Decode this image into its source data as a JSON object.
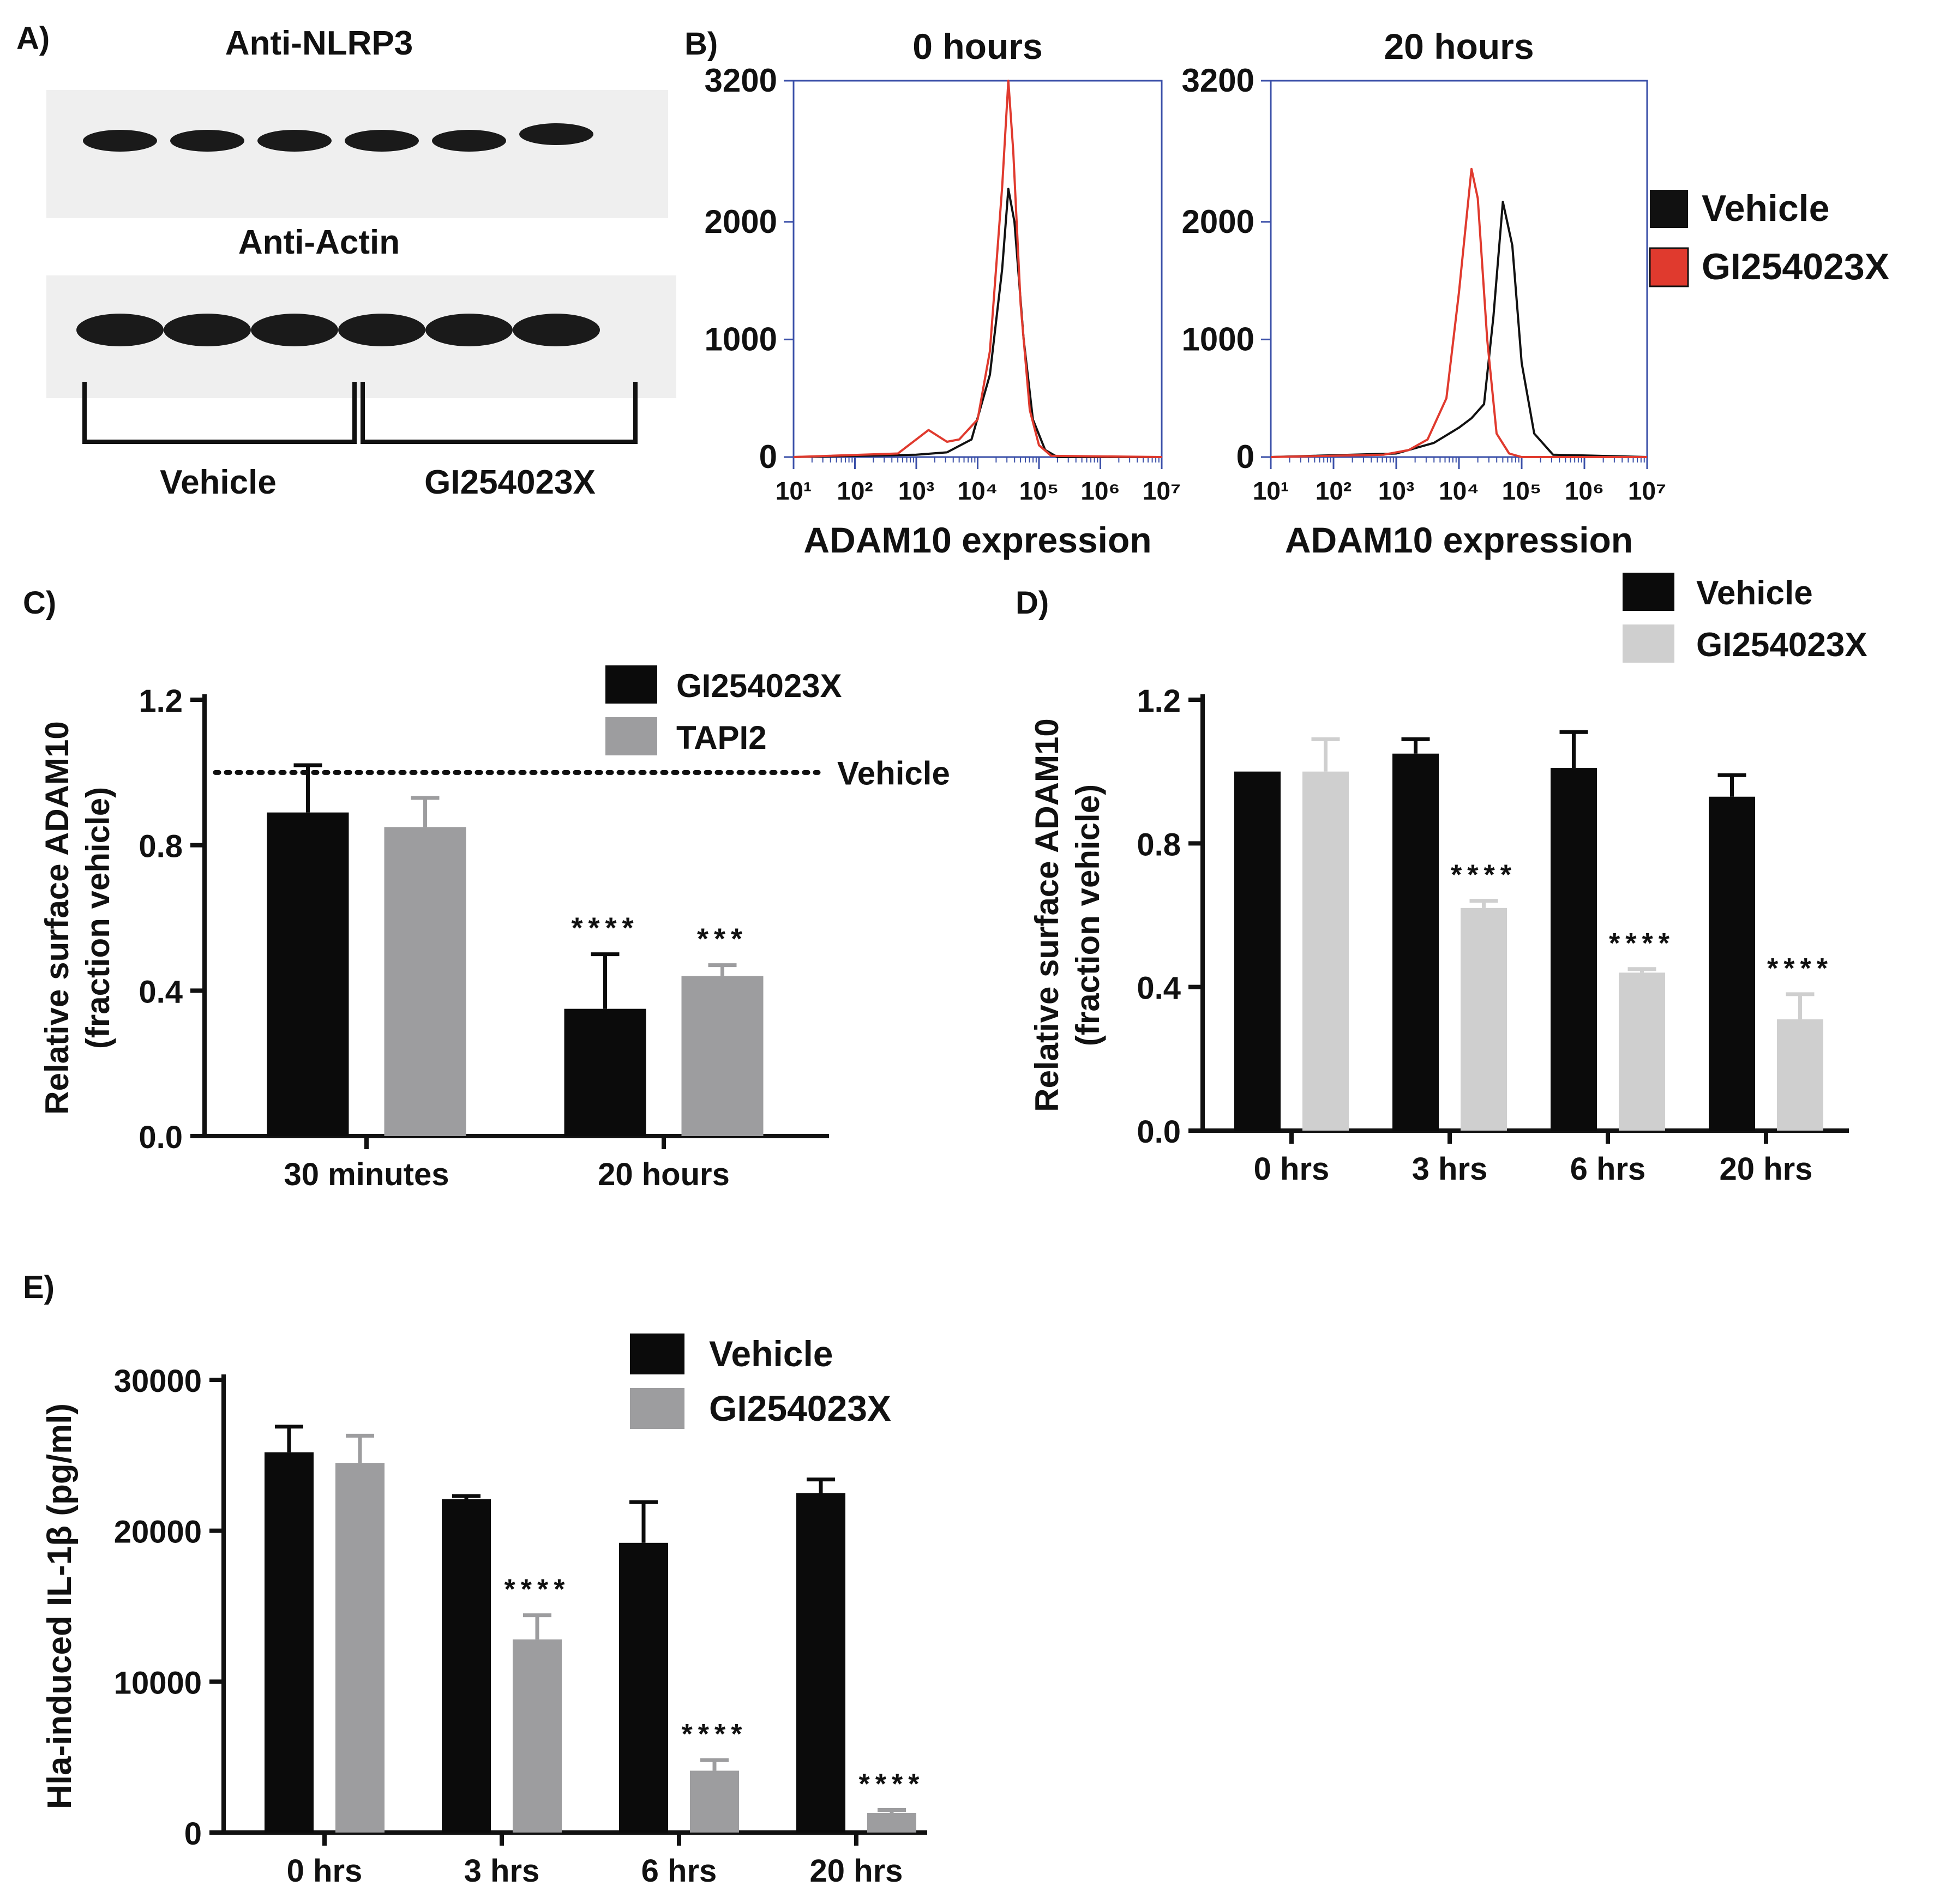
{
  "colors": {
    "black": "#111111",
    "vehicle_bar": "#0b0b0b",
    "gi_gray": "#9d9d9f",
    "gi_light": "#cfcfcf",
    "red_trace": "#e03a2e",
    "flow_axis": "#3a4fa8",
    "blot_bg": "#efefef",
    "blot_band": "#1a1a1a"
  },
  "panel_a": {
    "label": "A)",
    "blot1_title": "Anti-NLRP3",
    "blot2_title": "Anti-Actin",
    "group_vehicle": "Vehicle",
    "group_gi": "GI254023X",
    "lanes": 6
  },
  "panel_b": {
    "label": "B)",
    "legend": [
      "Vehicle",
      "GI254023X"
    ],
    "chart_data": [
      {
        "type": "line",
        "title": "0 hours",
        "xlabel": "ADAM10 expression",
        "ylabel": "",
        "xscale": "log",
        "xlim_log10": [
          1,
          7
        ],
        "ylim": [
          0,
          3200
        ],
        "yticks": [
          0,
          1000,
          2000,
          3200
        ],
        "xticks": [
          "10¹",
          "10²",
          "10³",
          "10⁴",
          "10⁵",
          "10⁶",
          "10⁷"
        ],
        "series": [
          {
            "name": "Vehicle",
            "color": "black",
            "log_x": [
              1,
              3,
              3.5,
              3.9,
              4.2,
              4.4,
              4.5,
              4.6,
              4.75,
              4.9,
              5.1,
              5.3,
              7
            ],
            "y": [
              0,
              20,
              40,
              150,
              700,
              1600,
              2280,
              2000,
              1000,
              320,
              60,
              0,
              0
            ]
          },
          {
            "name": "GI254023X",
            "color": "red",
            "log_x": [
              1,
              2.7,
              3.2,
              3.5,
              3.7,
              4.0,
              4.2,
              4.4,
              4.5,
              4.58,
              4.7,
              4.85,
              5.0,
              5.2,
              7
            ],
            "y": [
              0,
              30,
              230,
              130,
              150,
              320,
              900,
              2300,
              3200,
              2600,
              1300,
              400,
              100,
              10,
              0
            ]
          }
        ]
      },
      {
        "type": "line",
        "title": "20 hours",
        "xlabel": "ADAM10 expression",
        "ylabel": "",
        "xscale": "log",
        "xlim_log10": [
          1,
          7
        ],
        "ylim": [
          0,
          3200
        ],
        "yticks": [
          0,
          1000,
          2000,
          3200
        ],
        "xticks": [
          "10¹",
          "10²",
          "10³",
          "10⁴",
          "10⁵",
          "10⁶",
          "10⁷"
        ],
        "series": [
          {
            "name": "Vehicle",
            "color": "black",
            "log_x": [
              1,
              3.0,
              3.6,
              4.0,
              4.2,
              4.4,
              4.55,
              4.7,
              4.85,
              5.0,
              5.2,
              5.5,
              7
            ],
            "y": [
              0,
              30,
              120,
              250,
              330,
              450,
              1200,
              2170,
              1800,
              800,
              200,
              20,
              0
            ]
          },
          {
            "name": "GI254023X",
            "color": "red",
            "log_x": [
              1,
              2.8,
              3.2,
              3.5,
              3.8,
              4.0,
              4.2,
              4.3,
              4.45,
              4.6,
              4.8,
              5.0,
              7
            ],
            "y": [
              0,
              20,
              60,
              150,
              500,
              1400,
              2450,
              2200,
              1000,
              200,
              30,
              0,
              0
            ]
          }
        ]
      }
    ]
  },
  "panel_c": {
    "label": "C)",
    "vehicle_line_label": "Vehicle",
    "chart_data": {
      "type": "bar",
      "ylabel": "Relative surface ADAM10",
      "ylabel2": "(fraction vehicle)",
      "categories": [
        "30 minutes",
        "20 hours"
      ],
      "ylim": [
        0,
        1.2
      ],
      "yticks": [
        "0.0",
        "0.4",
        "0.8",
        "1.2"
      ],
      "reference_line": 1.0,
      "series": [
        {
          "name": "GI254023X",
          "color": "vehicle_bar",
          "values": [
            0.89,
            0.35
          ],
          "errors": [
            0.13,
            0.15
          ],
          "sig": [
            "",
            "****"
          ]
        },
        {
          "name": "TAPI2",
          "color": "gi_gray",
          "values": [
            0.85,
            0.44
          ],
          "errors": [
            0.08,
            0.03
          ],
          "sig": [
            "",
            "***"
          ]
        }
      ]
    }
  },
  "panel_d": {
    "label": "D)",
    "chart_data": {
      "type": "bar",
      "ylabel": "Relative surface ADAM10",
      "ylabel2": "(fraction vehicle)",
      "categories": [
        "0 hrs",
        "3 hrs",
        "6 hrs",
        "20 hrs"
      ],
      "ylim": [
        0,
        1.2
      ],
      "yticks": [
        "0.0",
        "0.4",
        "0.8",
        "1.2"
      ],
      "series": [
        {
          "name": "Vehicle",
          "color": "vehicle_bar",
          "values": [
            1.0,
            1.05,
            1.01,
            0.93
          ],
          "errors": [
            0,
            0.04,
            0.1,
            0.06
          ],
          "sig": [
            "",
            "",
            "",
            ""
          ]
        },
        {
          "name": "GI254023X",
          "color": "gi_light",
          "values": [
            1.0,
            0.62,
            0.44,
            0.31
          ],
          "errors": [
            0.09,
            0.02,
            0.01,
            0.07
          ],
          "sig": [
            "",
            "****",
            "****",
            "****"
          ]
        }
      ]
    }
  },
  "panel_e": {
    "label": "E)",
    "chart_data": {
      "type": "bar",
      "ylabel": "Hla-induced IL-1β (pg/ml)",
      "categories": [
        "0 hrs",
        "3 hrs",
        "6 hrs",
        "20 hrs"
      ],
      "ylim": [
        0,
        30000
      ],
      "yticks": [
        "0",
        "10000",
        "20000",
        "30000"
      ],
      "series": [
        {
          "name": "Vehicle",
          "color": "vehicle_bar",
          "values": [
            25200,
            22100,
            19200,
            22500
          ],
          "errors": [
            1700,
            200,
            2700,
            900
          ],
          "sig": [
            "",
            "",
            "",
            ""
          ]
        },
        {
          "name": "GI254023X",
          "color": "gi_gray",
          "values": [
            24500,
            12800,
            4100,
            1300
          ],
          "errors": [
            1800,
            1600,
            700,
            200
          ],
          "sig": [
            "",
            "****",
            "****",
            "****"
          ]
        }
      ]
    }
  }
}
